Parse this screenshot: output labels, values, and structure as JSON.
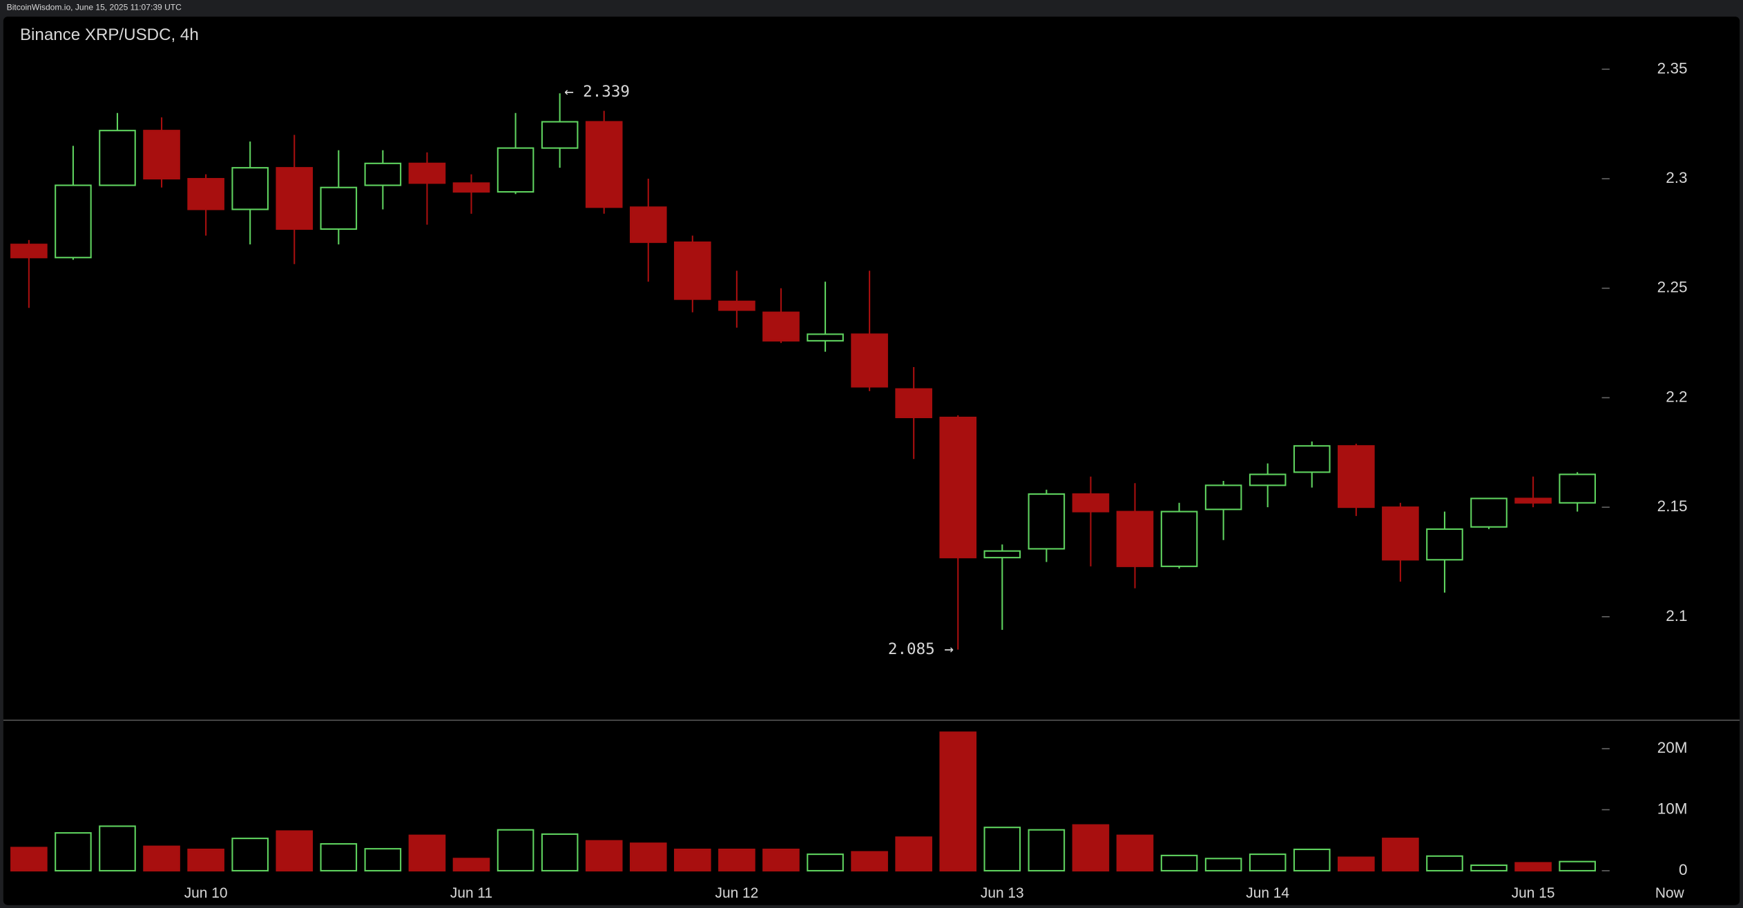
{
  "header": "BitcoinWisdom.io, June 15, 2025 11:07:39 UTC",
  "now_label": "Now",
  "chart_data": [
    {
      "type": "candlestick",
      "title": "Binance XRP/USDC, 4h",
      "categories": [
        null,
        null,
        null,
        null,
        "Jun 10",
        null,
        null,
        null,
        null,
        null,
        "Jun 11",
        null,
        null,
        null,
        null,
        null,
        "Jun 12",
        null,
        null,
        null,
        null,
        null,
        "Jun 13",
        null,
        null,
        null,
        null,
        null,
        "Jun 14",
        null,
        null,
        null,
        null,
        null,
        "Jun 15",
        null
      ],
      "open": [
        2.27,
        2.264,
        2.297,
        2.322,
        2.3,
        2.286,
        2.305,
        2.277,
        2.297,
        2.307,
        2.298,
        2.294,
        2.314,
        2.326,
        2.287,
        2.271,
        2.244,
        2.239,
        2.226,
        2.229,
        2.204,
        2.191,
        2.127,
        2.131,
        2.156,
        2.148,
        2.123,
        2.149,
        2.16,
        2.166,
        2.178,
        2.15,
        2.126,
        2.141,
        2.154,
        2.152
      ],
      "high": [
        2.272,
        2.315,
        2.33,
        2.328,
        2.302,
        2.317,
        2.32,
        2.313,
        2.313,
        2.312,
        2.302,
        2.33,
        2.339,
        2.331,
        2.3,
        2.274,
        2.258,
        2.25,
        2.253,
        2.258,
        2.214,
        2.192,
        2.133,
        2.158,
        2.164,
        2.161,
        2.152,
        2.162,
        2.17,
        2.18,
        2.179,
        2.152,
        2.148,
        2.154,
        2.164,
        2.166
      ],
      "low": [
        2.241,
        2.263,
        2.297,
        2.296,
        2.274,
        2.27,
        2.261,
        2.27,
        2.286,
        2.279,
        2.284,
        2.293,
        2.305,
        2.284,
        2.253,
        2.239,
        2.232,
        2.225,
        2.221,
        2.203,
        2.172,
        2.085,
        2.094,
        2.125,
        2.123,
        2.113,
        2.122,
        2.135,
        2.15,
        2.159,
        2.146,
        2.116,
        2.111,
        2.14,
        2.15,
        2.148
      ],
      "close": [
        2.264,
        2.297,
        2.322,
        2.3,
        2.286,
        2.305,
        2.277,
        2.296,
        2.307,
        2.298,
        2.294,
        2.314,
        2.326,
        2.287,
        2.271,
        2.245,
        2.24,
        2.226,
        2.229,
        2.205,
        2.191,
        2.127,
        2.13,
        2.156,
        2.148,
        2.123,
        2.148,
        2.16,
        2.165,
        2.178,
        2.15,
        2.126,
        2.14,
        2.154,
        2.152,
        2.165
      ],
      "up_color": "#5fd35f",
      "down_color": "#a80f0f",
      "ylim": [
        2.053,
        2.374
      ],
      "yticks": [
        2.35,
        2.3,
        2.25,
        2.2,
        2.15,
        2.1
      ],
      "annotations": [
        {
          "text": "← 2.339",
          "value": 2.339
        },
        {
          "text": "2.085 →",
          "value": 2.085
        }
      ]
    },
    {
      "type": "bar",
      "values": [
        3800000,
        6200000,
        7300000,
        4000000,
        3500000,
        5300000,
        6500000,
        4400000,
        3600000,
        5800000,
        2000000,
        6700000,
        6000000,
        4900000,
        4500000,
        3500000,
        3500000,
        3500000,
        2700000,
        3100000,
        5500000,
        22700000,
        7100000,
        6700000,
        7500000,
        5800000,
        2500000,
        2000000,
        2700000,
        3500000,
        2200000,
        5300000,
        2400000,
        900000,
        1300000,
        1500000
      ],
      "ylim": [
        -1450000,
        24400000
      ],
      "yticks": [
        0,
        {
          "value": 10000000,
          "label": "10M"
        },
        {
          "value": 20000000,
          "label": "20M"
        }
      ]
    }
  ]
}
